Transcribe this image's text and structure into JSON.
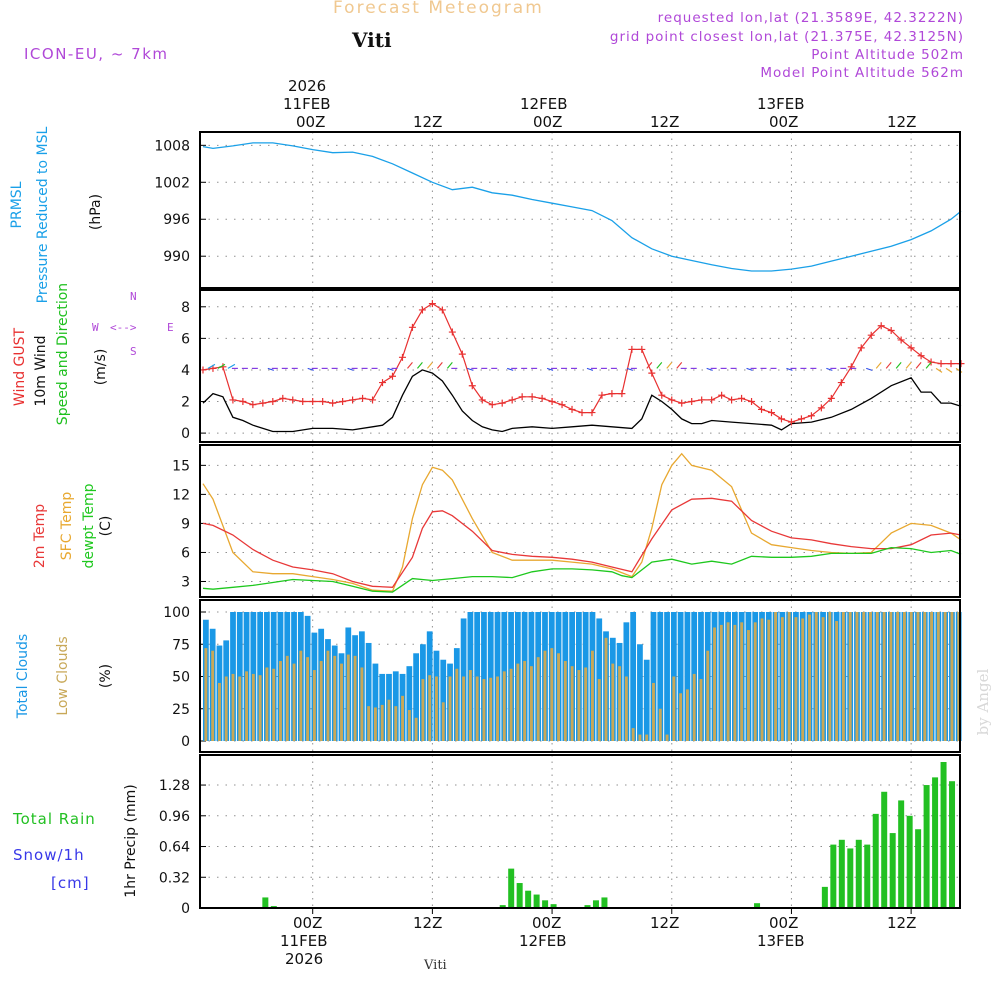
{
  "header": {
    "title": "Forecast Meteogram",
    "station": "Viti",
    "model": "ICON-EU, ~ 7km",
    "requested": "requested lon,lat (21.3589E, 42.3222N)",
    "grid_point": "grid point closest lon,lat (21.375E, 42.3125N)",
    "point_altitude": "Point Altitude 502m",
    "model_altitude": "Model Point Altitude 562m",
    "watermark": "by Angel",
    "footer_station": "Viti"
  },
  "time_axis": {
    "top_year": "2026",
    "ticks": [
      {
        "hour": 0,
        "top": [
          "11FEB",
          "00Z"
        ],
        "bottom": [
          "00Z",
          "11FEB",
          "2026"
        ]
      },
      {
        "hour": 12,
        "top": [
          "12Z"
        ],
        "bottom": [
          "12Z"
        ]
      },
      {
        "hour": 24,
        "top": [
          "12FEB",
          "00Z"
        ],
        "bottom": [
          "00Z",
          "12FEB"
        ]
      },
      {
        "hour": 36,
        "top": [
          "12Z"
        ],
        "bottom": [
          "12Z"
        ]
      },
      {
        "hour": 48,
        "top": [
          "13FEB",
          "00Z"
        ],
        "bottom": [
          "00Z",
          "13FEB"
        ]
      },
      {
        "hour": 60,
        "top": [
          "12Z"
        ],
        "bottom": [
          "12Z"
        ]
      }
    ],
    "start_hour": -11.3,
    "end_hour": 64.9
  },
  "colors": {
    "pressure": "#1aa0e8",
    "gust": "#e83030",
    "wind": "#000000",
    "wind_dir": "#1ec01e",
    "temp2m": "#e83838",
    "sfc_temp": "#e8a830",
    "dewpt": "#1ec81e",
    "total_clouds": "#1a98e6",
    "low_clouds": "#c8a858",
    "rain": "#22c022",
    "snow": "#3838e8",
    "grid": "#909090"
  },
  "chart_data": [
    {
      "type": "line",
      "panel": "pressure",
      "labels": {
        "line1": "PRMSL",
        "line2": "Pressure Reduced to MSL",
        "unit": "(hPa)"
      },
      "ylim": [
        985,
        1010
      ],
      "yticks": [
        990,
        996,
        1002,
        1008
      ],
      "x": [
        -11,
        -10,
        -8,
        -6,
        -4,
        -2,
        0,
        2,
        4,
        6,
        8,
        10,
        12,
        14,
        16,
        18,
        20,
        22,
        24,
        26,
        28,
        30,
        32,
        34,
        36,
        38,
        40,
        42,
        44,
        46,
        48,
        50,
        52,
        54,
        56,
        58,
        60,
        62,
        64,
        65
      ],
      "values": [
        1007.8,
        1007.5,
        1007.9,
        1008.4,
        1008.4,
        1007.9,
        1007.3,
        1006.8,
        1006.9,
        1006.2,
        1005.0,
        1003.5,
        1002.0,
        1000.8,
        1001.2,
        1000.3,
        999.9,
        999.2,
        998.6,
        998.0,
        997.4,
        995.8,
        993.0,
        991.2,
        990.0,
        989.3,
        988.6,
        988.0,
        987.6,
        987.6,
        987.9,
        988.4,
        989.2,
        990.0,
        990.8,
        991.6,
        992.7,
        994.1,
        996.0,
        997.3
      ]
    },
    {
      "type": "line",
      "panel": "wind",
      "labels": {
        "gust": "Wind GUST",
        "wind": "10m Wind",
        "dir": "Speed and Direction",
        "unit": "(m/s)",
        "compass": {
          "n": "N",
          "s": "S",
          "w": "W",
          "e": "E"
        }
      },
      "ylim": [
        -0.5,
        9
      ],
      "yticks": [
        0,
        2,
        4,
        6,
        8
      ],
      "series": [
        {
          "name": "Wind GUST",
          "x": [
            -11,
            -10,
            -9,
            -8,
            -7,
            -6,
            -5,
            -4,
            -3,
            -2,
            -1,
            0,
            1,
            2,
            3,
            4,
            5,
            6,
            7,
            8,
            9,
            10,
            11,
            12,
            13,
            14,
            15,
            16,
            17,
            18,
            19,
            20,
            21,
            22,
            23,
            24,
            25,
            26,
            27,
            28,
            29,
            30,
            31,
            32,
            33,
            34,
            35,
            36,
            37,
            38,
            39,
            40,
            41,
            42,
            43,
            44,
            45,
            46,
            47,
            48,
            49,
            50,
            51,
            52,
            53,
            54,
            55,
            56,
            57,
            58,
            59,
            60,
            61,
            62,
            63,
            64,
            65
          ],
          "values": [
            4.0,
            4.1,
            4.2,
            2.1,
            2.0,
            1.8,
            1.9,
            2.0,
            2.2,
            2.1,
            2.0,
            2.0,
            2.0,
            1.9,
            2.0,
            2.1,
            2.2,
            2.1,
            3.2,
            3.6,
            4.8,
            6.7,
            7.8,
            8.2,
            7.8,
            6.4,
            5.0,
            3.0,
            2.1,
            1.8,
            1.9,
            2.1,
            2.3,
            2.3,
            2.2,
            2.0,
            1.8,
            1.5,
            1.3,
            1.3,
            2.4,
            2.5,
            2.5,
            5.3,
            5.3,
            3.8,
            2.4,
            2.1,
            1.9,
            2.0,
            2.1,
            2.1,
            2.4,
            2.1,
            2.2,
            2.0,
            1.5,
            1.3,
            0.9,
            0.7,
            0.9,
            1.1,
            1.6,
            2.2,
            3.2,
            4.2,
            5.4,
            6.2,
            6.8,
            6.5,
            5.9,
            5.4,
            4.9,
            4.5,
            4.4,
            4.4,
            4.4
          ]
        },
        {
          "name": "10m Wind",
          "x": [
            -11,
            -10,
            -9,
            -8,
            -7,
            -6,
            -4,
            -2,
            0,
            2,
            4,
            6,
            7,
            8,
            9,
            10,
            11,
            12,
            13,
            14,
            15,
            16,
            17,
            18,
            19,
            20,
            22,
            24,
            26,
            28,
            30,
            32,
            33,
            34,
            35,
            36,
            37,
            38,
            39,
            40,
            42,
            44,
            46,
            47,
            48,
            50,
            52,
            54,
            56,
            58,
            60,
            61,
            62,
            63,
            64,
            65
          ],
          "values": [
            1.9,
            2.5,
            2.3,
            1.0,
            0.8,
            0.5,
            0.1,
            0.1,
            0.3,
            0.3,
            0.2,
            0.4,
            0.5,
            1.0,
            2.4,
            3.6,
            4.0,
            3.8,
            3.3,
            2.4,
            1.4,
            0.8,
            0.4,
            0.2,
            0.1,
            0.3,
            0.4,
            0.3,
            0.4,
            0.5,
            0.4,
            0.3,
            0.9,
            2.4,
            2.0,
            1.5,
            0.9,
            0.6,
            0.6,
            0.8,
            0.7,
            0.6,
            0.5,
            0.2,
            0.6,
            0.7,
            1.0,
            1.5,
            2.2,
            3.0,
            3.5,
            2.6,
            2.6,
            1.9,
            1.9,
            1.7
          ]
        }
      ]
    },
    {
      "type": "line",
      "panel": "temperature",
      "labels": {
        "t2m": "2m Temp",
        "sfc": "SFC Temp",
        "dew": "dewpt Temp",
        "unit": "(C)"
      },
      "ylim": [
        1.5,
        17
      ],
      "yticks": [
        3,
        6,
        9,
        12,
        15
      ],
      "series": [
        {
          "name": "2m Temp",
          "x": [
            -11,
            -10,
            -8,
            -6,
            -4,
            -2,
            0,
            2,
            4,
            6,
            8,
            10,
            11,
            12,
            13,
            14,
            16,
            18,
            20,
            22,
            24,
            26,
            28,
            30,
            32,
            34,
            36,
            38,
            40,
            42,
            44,
            46,
            48,
            50,
            52,
            54,
            56,
            58,
            60,
            62,
            64,
            65
          ],
          "values": [
            9.0,
            8.8,
            7.8,
            6.3,
            5.2,
            4.5,
            4.2,
            3.8,
            3.0,
            2.5,
            2.4,
            5.5,
            8.5,
            10.2,
            10.3,
            9.8,
            8.2,
            6.2,
            5.8,
            5.6,
            5.5,
            5.3,
            5.0,
            4.5,
            4.0,
            7.4,
            10.4,
            11.5,
            11.6,
            11.3,
            9.3,
            8.2,
            7.5,
            7.3,
            6.9,
            6.6,
            6.4,
            6.4,
            6.8,
            7.8,
            8.0,
            7.8
          ]
        },
        {
          "name": "SFC Temp",
          "x": [
            -11,
            -10,
            -8,
            -6,
            -4,
            -2,
            0,
            2,
            4,
            6,
            8,
            9,
            10,
            11,
            12,
            13,
            14,
            16,
            18,
            20,
            22,
            24,
            26,
            28,
            30,
            32,
            33,
            34,
            35,
            36,
            37,
            38,
            40,
            42,
            44,
            46,
            48,
            50,
            52,
            54,
            56,
            58,
            60,
            62,
            64,
            65
          ],
          "values": [
            13.1,
            11.5,
            6.0,
            4.0,
            3.8,
            3.8,
            3.5,
            3.2,
            2.8,
            2.1,
            2.0,
            4.5,
            9.5,
            13.0,
            14.8,
            14.5,
            13.5,
            9.5,
            6.0,
            5.2,
            5.2,
            5.2,
            5.0,
            4.8,
            4.3,
            3.5,
            5.0,
            8.5,
            13.0,
            15.0,
            16.2,
            15.0,
            14.5,
            12.8,
            8.0,
            6.8,
            6.5,
            6.2,
            6.0,
            5.9,
            6.0,
            8.0,
            9.0,
            8.8,
            8.0,
            7.3
          ]
        },
        {
          "name": "dewpt Temp",
          "x": [
            -11,
            -10,
            -8,
            -6,
            -4,
            -2,
            0,
            2,
            4,
            6,
            8,
            10,
            12,
            14,
            16,
            18,
            20,
            22,
            24,
            26,
            28,
            30,
            31,
            32,
            34,
            36,
            38,
            40,
            42,
            44,
            46,
            48,
            50,
            52,
            54,
            56,
            58,
            60,
            62,
            64,
            65
          ],
          "values": [
            2.3,
            2.2,
            2.4,
            2.6,
            2.9,
            3.2,
            3.1,
            3.0,
            2.5,
            2.0,
            1.9,
            3.3,
            3.1,
            3.3,
            3.5,
            3.5,
            3.4,
            4.0,
            4.3,
            4.3,
            4.2,
            4.0,
            3.6,
            3.4,
            5.0,
            5.3,
            4.8,
            5.1,
            4.8,
            5.6,
            5.5,
            5.5,
            5.6,
            5.9,
            5.9,
            5.9,
            6.5,
            6.4,
            6.0,
            6.2,
            5.8
          ]
        }
      ]
    },
    {
      "type": "bar",
      "panel": "clouds",
      "labels": {
        "total": "Total Clouds",
        "low": "Low Clouds",
        "unit": "(%)"
      },
      "ylim": [
        0,
        100
      ],
      "yticks": [
        0,
        25,
        50,
        75,
        100
      ],
      "x_start": -11,
      "series": [
        {
          "name": "Total Clouds",
          "values": [
            94,
            87,
            74,
            78,
            100,
            100,
            100,
            100,
            100,
            100,
            100,
            100,
            100,
            100,
            100,
            97,
            84,
            87,
            79,
            74,
            68,
            88,
            82,
            85,
            76,
            60,
            52,
            52,
            54,
            52,
            58,
            68,
            75,
            85,
            70,
            63,
            60,
            72,
            95,
            100,
            100,
            100,
            100,
            100,
            100,
            100,
            100,
            100,
            100,
            100,
            100,
            100,
            100,
            100,
            100,
            100,
            100,
            100,
            95,
            85,
            80,
            76,
            92,
            100,
            75,
            63,
            100,
            100,
            100,
            100,
            100,
            100,
            100,
            100,
            100,
            100,
            100,
            100,
            100,
            100,
            100,
            100,
            100,
            100,
            100,
            100,
            100,
            100,
            100,
            100,
            100,
            100,
            100,
            100,
            100,
            100,
            100,
            100,
            100,
            100,
            100,
            100,
            100,
            100,
            100,
            100,
            100,
            100,
            100,
            100,
            100,
            100
          ]
        },
        {
          "name": "Low Clouds",
          "values": [
            72,
            70,
            45,
            50,
            52,
            50,
            54,
            52,
            51,
            57,
            56,
            62,
            66,
            60,
            70,
            65,
            55,
            62,
            70,
            66,
            60,
            67,
            66,
            57,
            27,
            26,
            28,
            32,
            27,
            35,
            24,
            18,
            48,
            51,
            50,
            30,
            50,
            56,
            50,
            55,
            50,
            48,
            49,
            50,
            54,
            56,
            60,
            62,
            58,
            65,
            70,
            72,
            68,
            62,
            58,
            55,
            57,
            70,
            48,
            80,
            60,
            58,
            50,
            10,
            5,
            5,
            45,
            25,
            5,
            50,
            37,
            40,
            52,
            48,
            70,
            88,
            90,
            92,
            90,
            92,
            86,
            92,
            95,
            94,
            100,
            96,
            100,
            96,
            95,
            98,
            100,
            96,
            100,
            93,
            100,
            100,
            100,
            100,
            100,
            100,
            100,
            100,
            100,
            100,
            100,
            100,
            100,
            100,
            100,
            100,
            100,
            100
          ]
        }
      ]
    },
    {
      "type": "bar",
      "panel": "precip",
      "labels": {
        "rain": "Total  Rain",
        "snow": "Snow/1h",
        "cm": "[cm]",
        "unit": "1hr Precip (mm)"
      },
      "ylim": [
        0,
        1.52
      ],
      "yticks": [
        0,
        0.32,
        0.64,
        0.96,
        1.28
      ],
      "ytick_labels": [
        "0",
        "0.32",
        "0.64",
        "0.96",
        "1.28"
      ],
      "x_start": -11,
      "series": [
        {
          "name": "Total Rain",
          "values": [
            0,
            0,
            0,
            0,
            0,
            0,
            0,
            0.11,
            0.02,
            0,
            0,
            0,
            0,
            0,
            0,
            0,
            0,
            0,
            0,
            0,
            0,
            0,
            0,
            0,
            0,
            0,
            0,
            0,
            0,
            0,
            0,
            0,
            0,
            0,
            0,
            0.03,
            0.41,
            0.26,
            0.18,
            0.14,
            0.08,
            0.04,
            0,
            0,
            0,
            0.03,
            0.08,
            0.11,
            0,
            0,
            0,
            0,
            0,
            0,
            0,
            0,
            0,
            0,
            0,
            0,
            0,
            0,
            0,
            0,
            0,
            0.05,
            0,
            0,
            0,
            0,
            0,
            0,
            0,
            0.22,
            0.66,
            0.71,
            0.62,
            0.71,
            0.66,
            0.98,
            1.21,
            0.78,
            1.12,
            0.96,
            0.82,
            1.28,
            1.36,
            1.52,
            1.32
          ]
        },
        {
          "name": "Snow/1h",
          "values": []
        }
      ]
    }
  ]
}
